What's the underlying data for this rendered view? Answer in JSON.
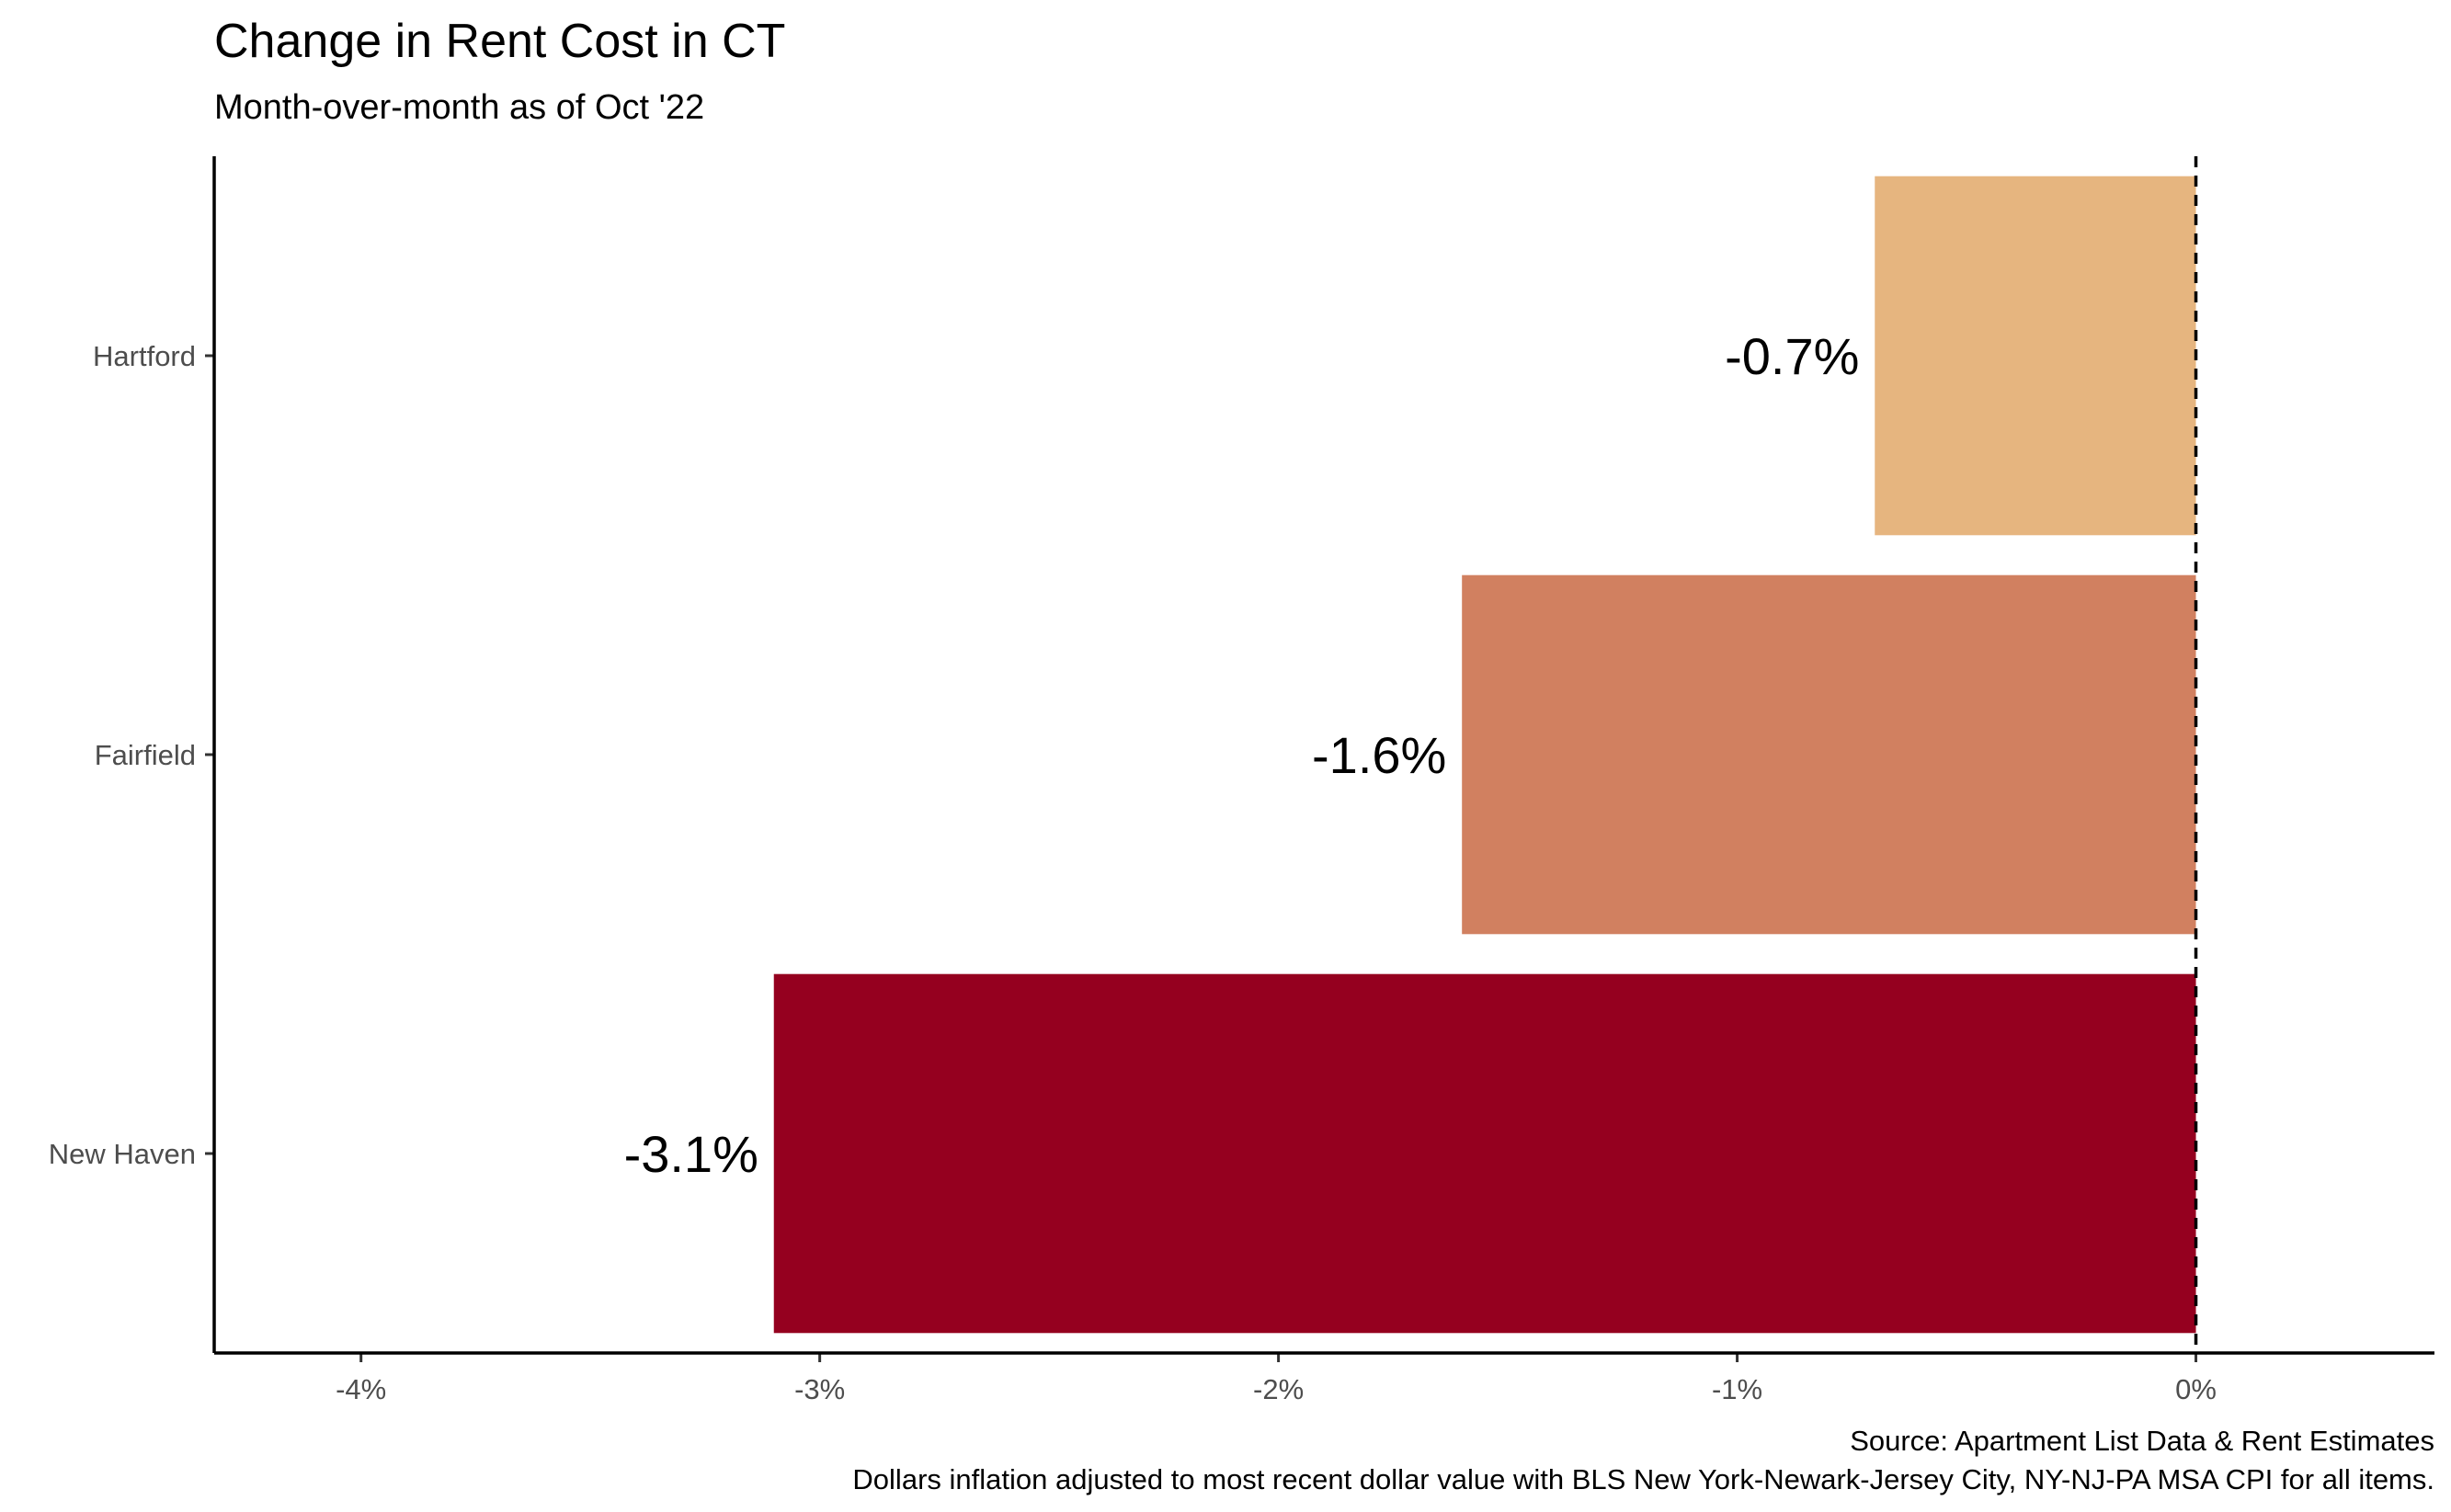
{
  "chart_data": {
    "type": "bar",
    "orientation": "horizontal",
    "title": "Change in Rent Cost in CT",
    "subtitle": "Month-over-month as of Oct '22",
    "xlabel": "",
    "ylabel": "",
    "categories": [
      "Hartford",
      "Fairfield",
      "New Haven"
    ],
    "values": [
      -0.7,
      -1.6,
      -3.1
    ],
    "data_labels": [
      "-0.7%",
      "-1.6%",
      "-3.1%"
    ],
    "colors": [
      "#E6B57F",
      "#D18060",
      "#95001F"
    ],
    "xlim": [
      -4.32,
      0.52
    ],
    "x_ticks": [
      -4,
      -3,
      -2,
      -1,
      0
    ],
    "x_tick_labels": [
      "-4%",
      "-3%",
      "-2%",
      "-1%",
      "0%"
    ],
    "reference_line": 0,
    "grid": false,
    "legend": "none",
    "caption_lines": [
      "Source: Apartment List Data & Rent Estimates",
      "Dollars inflation adjusted to most recent dollar value with BLS New York-Newark-Jersey City, NY-NJ-PA MSA CPI for all items."
    ]
  }
}
